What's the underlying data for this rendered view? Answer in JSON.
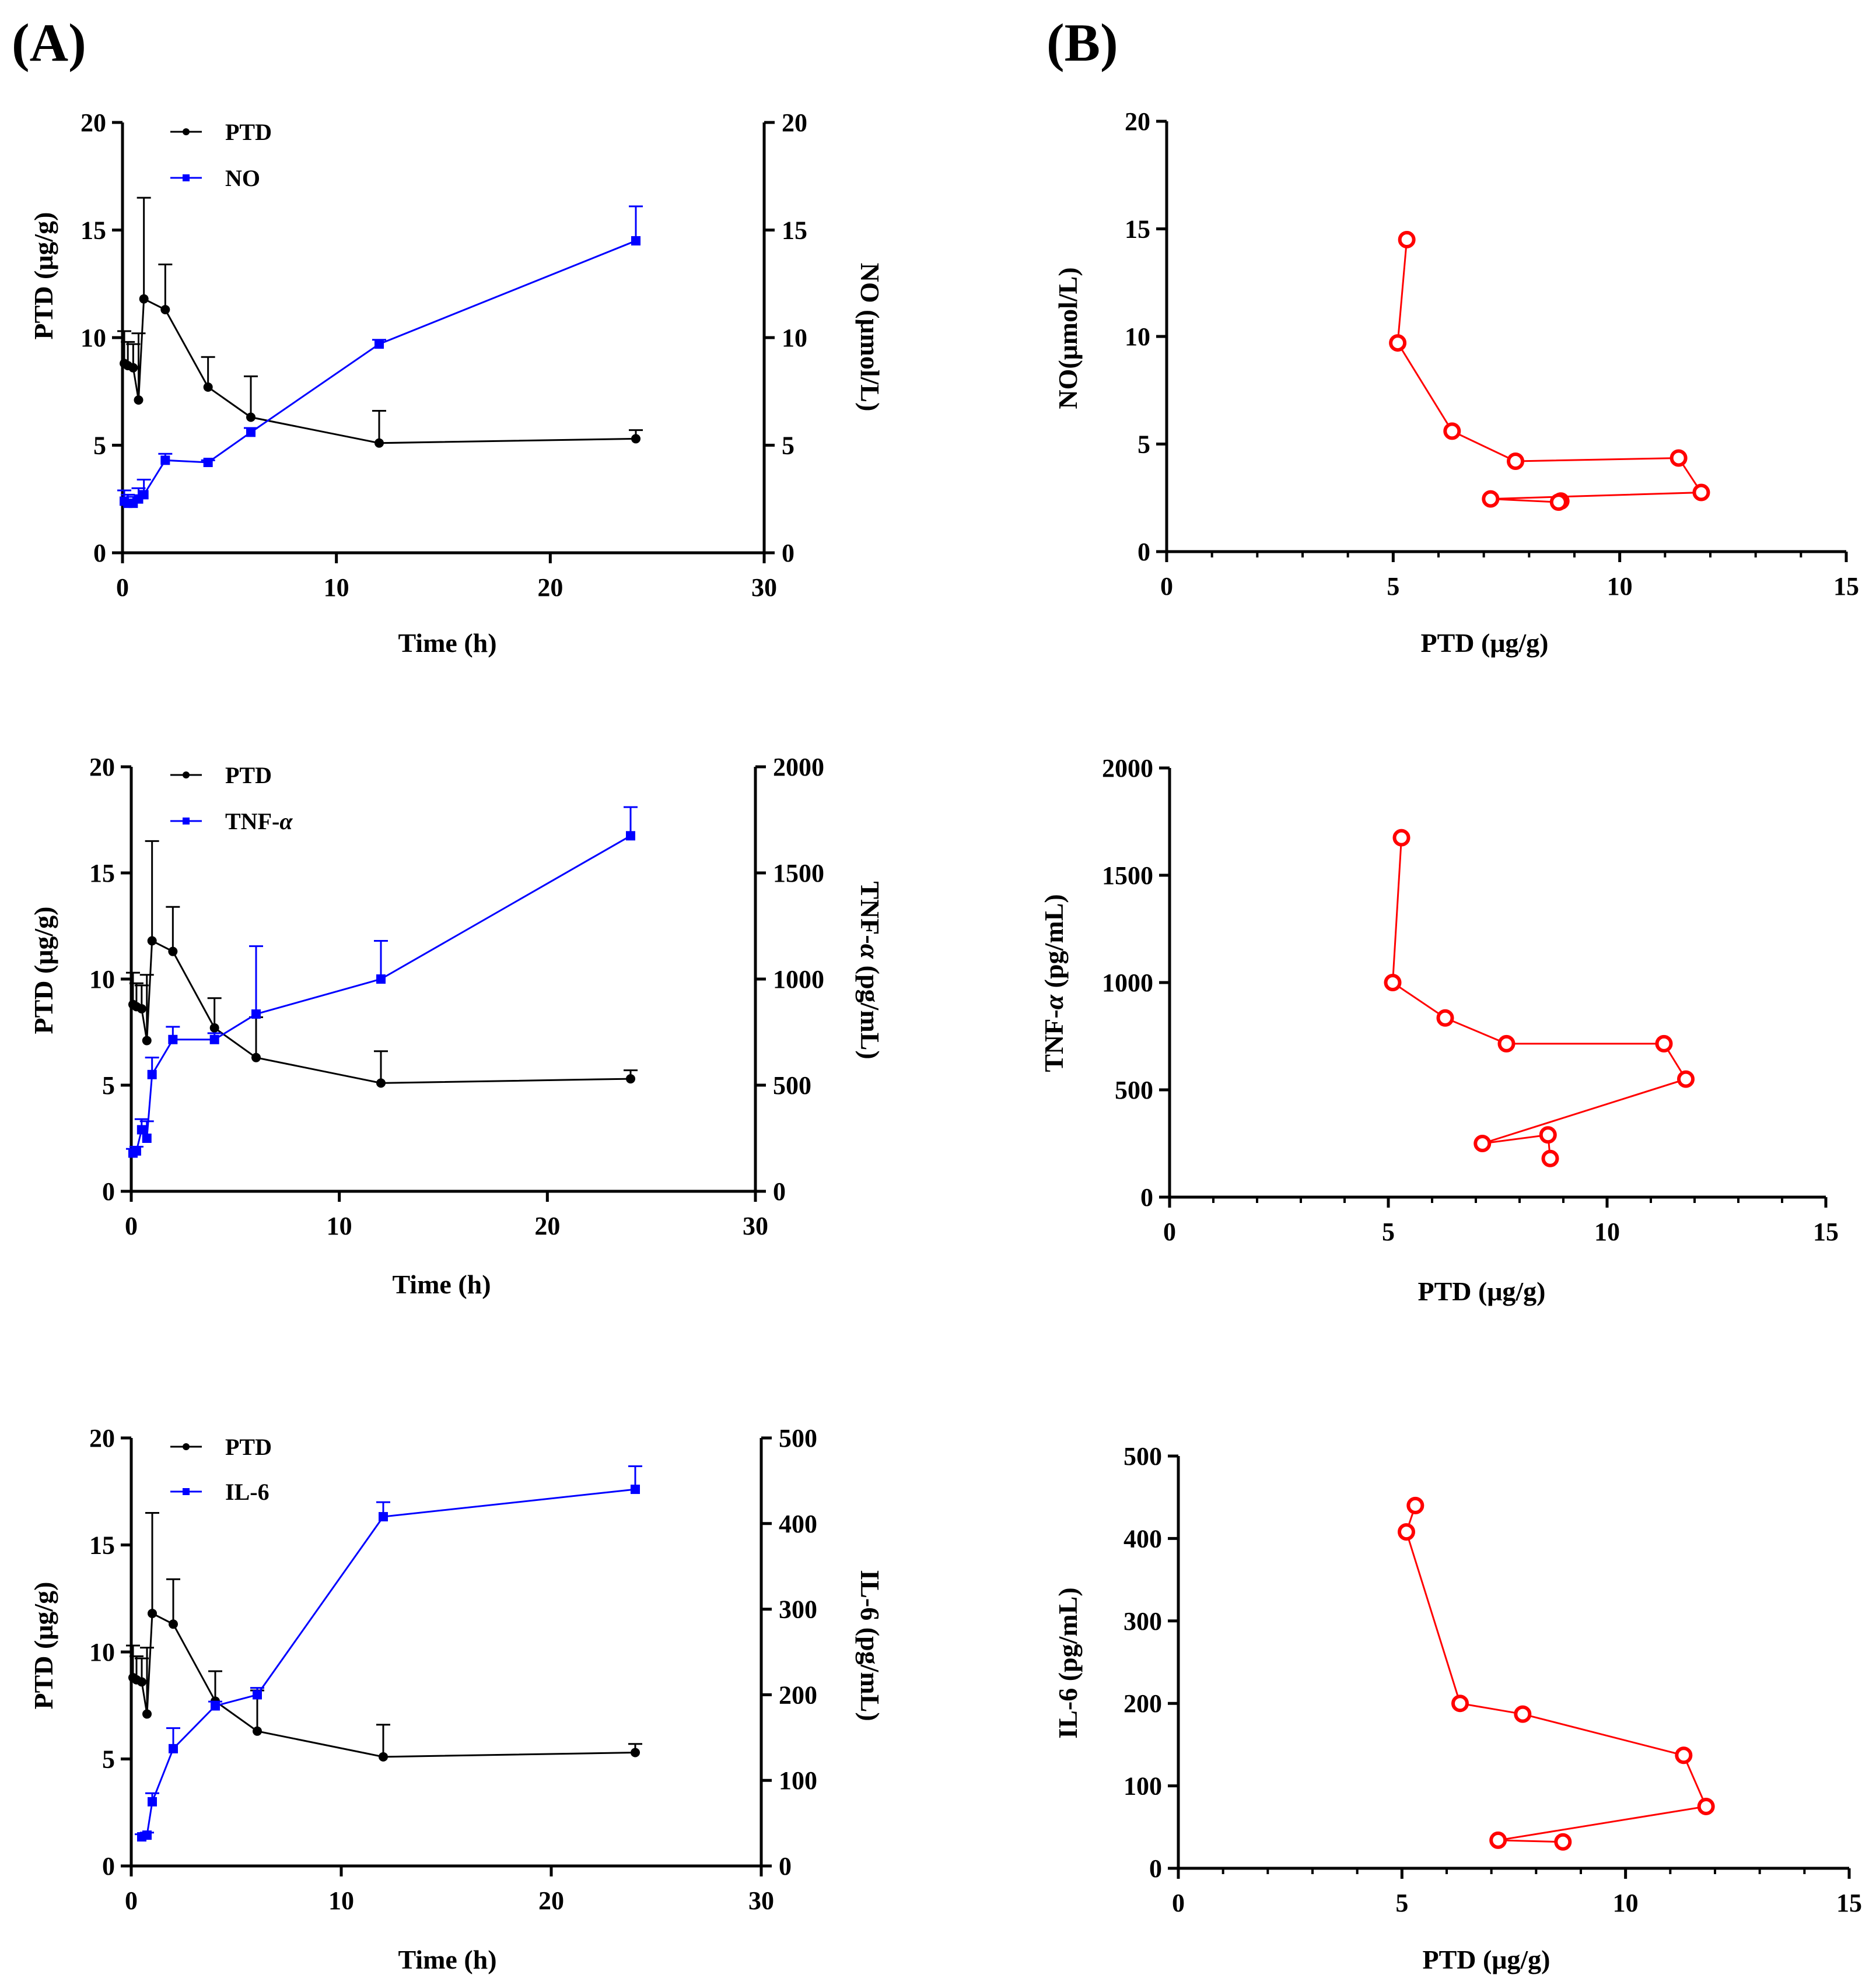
{
  "panel_labels": {
    "A": "(A)",
    "B": "(B)"
  },
  "colors": {
    "ptd": "#000000",
    "marker": "#0000ff",
    "scatter": "#ff0000"
  },
  "time_points": [
    0.083,
    0.25,
    0.5,
    0.75,
    1,
    2,
    4,
    6,
    12,
    24
  ],
  "chart_data": [
    {
      "id": "A1",
      "type": "line",
      "title": "",
      "xlabel": "Time (h)",
      "xlim": [
        0,
        30
      ],
      "xticks": [
        0,
        10,
        20,
        30
      ],
      "ylabel": "PTD (μg/g)",
      "ylim": [
        0,
        20
      ],
      "yticks": [
        0,
        5,
        10,
        15,
        20
      ],
      "y2label": "NO (μmol/L)",
      "y2lim": [
        0,
        20
      ],
      "y2ticks": [
        0,
        5,
        10,
        15,
        20
      ],
      "legend": [
        "PTD",
        "NO"
      ],
      "legend_position": "top-left",
      "series": [
        {
          "name": "PTD",
          "axis": "left",
          "marker": "circle",
          "color": "#000000",
          "x": [
            0.083,
            0.25,
            0.5,
            0.75,
            1,
            2,
            4,
            6,
            12,
            24
          ],
          "y": [
            8.8,
            8.7,
            8.6,
            7.1,
            11.8,
            11.3,
            7.7,
            6.3,
            5.1,
            5.3
          ],
          "err": [
            1.5,
            1.1,
            1.1,
            3.1,
            4.7,
            2.1,
            1.4,
            1.9,
            1.5,
            0.4
          ]
        },
        {
          "name": "NO",
          "axis": "right",
          "marker": "square",
          "color": "#0000ff",
          "x": [
            0.083,
            0.25,
            0.5,
            0.75,
            1,
            2,
            4,
            6,
            12,
            24
          ],
          "y": [
            2.4,
            2.3,
            2.3,
            2.5,
            2.7,
            4.3,
            4.2,
            5.6,
            9.7,
            14.5
          ],
          "err": [
            0.5,
            0.4,
            0.3,
            0.5,
            0.7,
            0.3,
            0.1,
            0.2,
            0.2,
            1.6
          ]
        }
      ]
    },
    {
      "id": "A2",
      "type": "line",
      "title": "",
      "xlabel": "Time (h)",
      "xlim": [
        0,
        30
      ],
      "xticks": [
        0,
        10,
        20,
        30
      ],
      "ylabel": "PTD (μg/g)",
      "ylim": [
        0,
        20
      ],
      "yticks": [
        0,
        5,
        10,
        15,
        20
      ],
      "y2label_prefix": "TNF-",
      "y2label_greek": "α",
      "y2label_suffix": " (pg/mL)",
      "y2lim": [
        0,
        2000
      ],
      "y2ticks": [
        0,
        500,
        1000,
        1500,
        2000
      ],
      "legend_prefix": "TNF-",
      "legend_greek": "α",
      "legend_position": "top-left",
      "series": [
        {
          "name": "PTD",
          "axis": "left",
          "marker": "circle",
          "color": "#000000",
          "x": [
            0.083,
            0.25,
            0.5,
            0.75,
            1,
            2,
            4,
            6,
            12,
            24
          ],
          "y": [
            8.8,
            8.7,
            8.6,
            7.1,
            11.8,
            11.3,
            7.7,
            6.3,
            5.1,
            5.3
          ],
          "err": [
            1.5,
            1.1,
            1.1,
            3.1,
            4.7,
            2.1,
            1.4,
            1.9,
            1.5,
            0.4
          ]
        },
        {
          "name": "TNF-α",
          "axis": "right",
          "marker": "square",
          "color": "#0000ff",
          "x": [
            0.083,
            0.25,
            0.5,
            0.75,
            1,
            2,
            4,
            6,
            12,
            24
          ],
          "y": [
            180,
            190,
            290,
            250,
            550,
            715,
            715,
            835,
            1000,
            1675
          ],
          "err": [
            20,
            20,
            50,
            80,
            80,
            60,
            30,
            320,
            180,
            135
          ]
        }
      ]
    },
    {
      "id": "A3",
      "type": "line",
      "title": "",
      "xlabel": "Time (h)",
      "xlim": [
        0,
        30
      ],
      "xticks": [
        0,
        10,
        20,
        30
      ],
      "ylabel": "PTD (μg/g)",
      "ylim": [
        0,
        20
      ],
      "yticks": [
        0,
        5,
        10,
        15,
        20
      ],
      "y2label": "IL-6 (pg/mL)",
      "y2lim": [
        0,
        500
      ],
      "y2ticks": [
        0,
        100,
        200,
        300,
        400,
        500
      ],
      "legend": [
        "PTD",
        "IL-6"
      ],
      "legend_position": "top-left",
      "series": [
        {
          "name": "PTD",
          "axis": "left",
          "marker": "circle",
          "color": "#000000",
          "x": [
            0.083,
            0.25,
            0.5,
            0.75,
            1,
            2,
            4,
            6,
            12,
            24
          ],
          "y": [
            8.8,
            8.7,
            8.6,
            7.1,
            11.8,
            11.3,
            7.7,
            6.3,
            5.1,
            5.3
          ],
          "err": [
            1.5,
            1.1,
            1.1,
            3.1,
            4.7,
            2.1,
            1.4,
            1.9,
            1.5,
            0.4
          ]
        },
        {
          "name": "IL-6",
          "axis": "right",
          "marker": "square",
          "color": "#0000ff",
          "x": [
            0.5,
            0.75,
            1,
            2,
            4,
            6,
            12,
            24
          ],
          "y": [
            34,
            36,
            75,
            137,
            187,
            200,
            408,
            440
          ],
          "err": [
            3,
            3,
            10,
            24,
            5,
            8,
            17,
            27
          ]
        }
      ]
    },
    {
      "id": "B1",
      "type": "scatter",
      "title": "",
      "xlabel": "PTD (μg/g)",
      "xlim": [
        0,
        15
      ],
      "xticks": [
        0,
        5,
        10,
        15
      ],
      "ylabel": "NO(μmol/L)",
      "ylim": [
        0,
        20
      ],
      "yticks": [
        0,
        5,
        10,
        15,
        20
      ],
      "points": [
        {
          "x": 8.7,
          "y": 2.35
        },
        {
          "x": 8.65,
          "y": 2.3
        },
        {
          "x": 7.15,
          "y": 2.45
        },
        {
          "x": 11.8,
          "y": 2.75
        },
        {
          "x": 11.3,
          "y": 4.35
        },
        {
          "x": 7.7,
          "y": 4.2
        },
        {
          "x": 6.3,
          "y": 5.6
        },
        {
          "x": 5.1,
          "y": 9.7
        },
        {
          "x": 5.3,
          "y": 14.5
        }
      ]
    },
    {
      "id": "B2",
      "type": "scatter",
      "title": "",
      "xlabel": "PTD (μg/g)",
      "xlim": [
        0,
        15
      ],
      "xticks": [
        0,
        5,
        10,
        15
      ],
      "ylabel_prefix": "TNF-",
      "ylabel_greek": "α",
      "ylabel_suffix": " (pg/mL)",
      "ylim": [
        0,
        2000
      ],
      "yticks": [
        0,
        500,
        1000,
        1500,
        2000
      ],
      "points": [
        {
          "x": 8.7,
          "y": 180
        },
        {
          "x": 8.65,
          "y": 290
        },
        {
          "x": 7.15,
          "y": 250
        },
        {
          "x": 11.8,
          "y": 550
        },
        {
          "x": 11.3,
          "y": 715
        },
        {
          "x": 7.7,
          "y": 715
        },
        {
          "x": 6.3,
          "y": 835
        },
        {
          "x": 5.1,
          "y": 1000
        },
        {
          "x": 5.3,
          "y": 1675
        }
      ]
    },
    {
      "id": "B3",
      "type": "scatter",
      "title": "",
      "xlabel": "PTD (μg/g)",
      "xlim": [
        0,
        15
      ],
      "xticks": [
        0,
        5,
        10,
        15
      ],
      "ylabel": "IL-6 (pg/mL)",
      "ylim": [
        0,
        500
      ],
      "yticks": [
        0,
        100,
        200,
        300,
        400,
        500
      ],
      "points": [
        {
          "x": 8.6,
          "y": 32
        },
        {
          "x": 7.15,
          "y": 34
        },
        {
          "x": 11.8,
          "y": 75
        },
        {
          "x": 11.3,
          "y": 137
        },
        {
          "x": 7.7,
          "y": 187
        },
        {
          "x": 6.3,
          "y": 200
        },
        {
          "x": 5.1,
          "y": 408
        },
        {
          "x": 5.3,
          "y": 440
        }
      ]
    }
  ]
}
